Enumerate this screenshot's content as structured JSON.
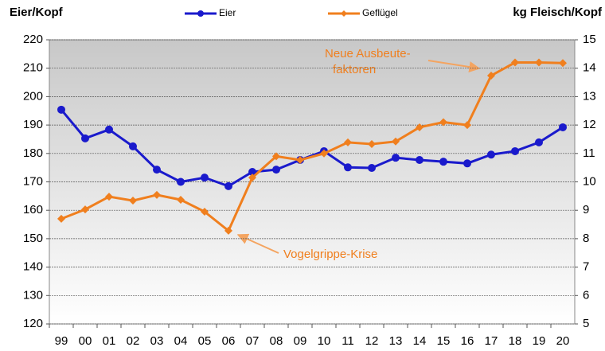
{
  "chart_data": {
    "type": "line",
    "y_label": "Eier/Kopf",
    "y2_label": "kg Fleisch/Kopf",
    "categories": [
      "99",
      "00",
      "01",
      "02",
      "03",
      "04",
      "05",
      "06",
      "07",
      "08",
      "09",
      "10",
      "11",
      "12",
      "13",
      "14",
      "15",
      "16",
      "17",
      "18",
      "19",
      "20"
    ],
    "series": [
      {
        "name": "Eier",
        "color": "#1a1acc",
        "values": [
          195.4,
          185.3,
          188.4,
          182.5,
          174.3,
          170,
          171.5,
          168.5,
          173.5,
          174.3,
          177.7,
          180.8,
          175.1,
          174.9,
          178.5,
          177.7,
          177.1,
          176.5,
          179.6,
          180.8,
          183.9,
          189.2
        ]
      },
      {
        "name": "Geflügel",
        "color": "#f07f1e",
        "axis": "y2",
        "values": [
          8.7,
          9.03,
          9.48,
          9.34,
          9.54,
          9.37,
          8.95,
          8.28,
          10.15,
          10.9,
          10.77,
          11.0,
          11.39,
          11.33,
          11.42,
          11.92,
          12.1,
          12.0,
          13.74,
          14.2,
          14.2,
          14.18
        ]
      }
    ],
    "ylim": [
      120,
      220
    ],
    "yticks": [
      120,
      130,
      140,
      150,
      160,
      170,
      180,
      190,
      200,
      210,
      220
    ],
    "y2lim": [
      5,
      15
    ],
    "y2ticks": [
      5,
      6,
      7,
      8,
      9,
      10,
      11,
      12,
      13,
      14,
      15
    ],
    "grid": true,
    "annotations": [
      [
        "Neue Ausbeute-",
        "faktoren"
      ],
      [
        "Vogelgrippe-Krise"
      ]
    ]
  }
}
